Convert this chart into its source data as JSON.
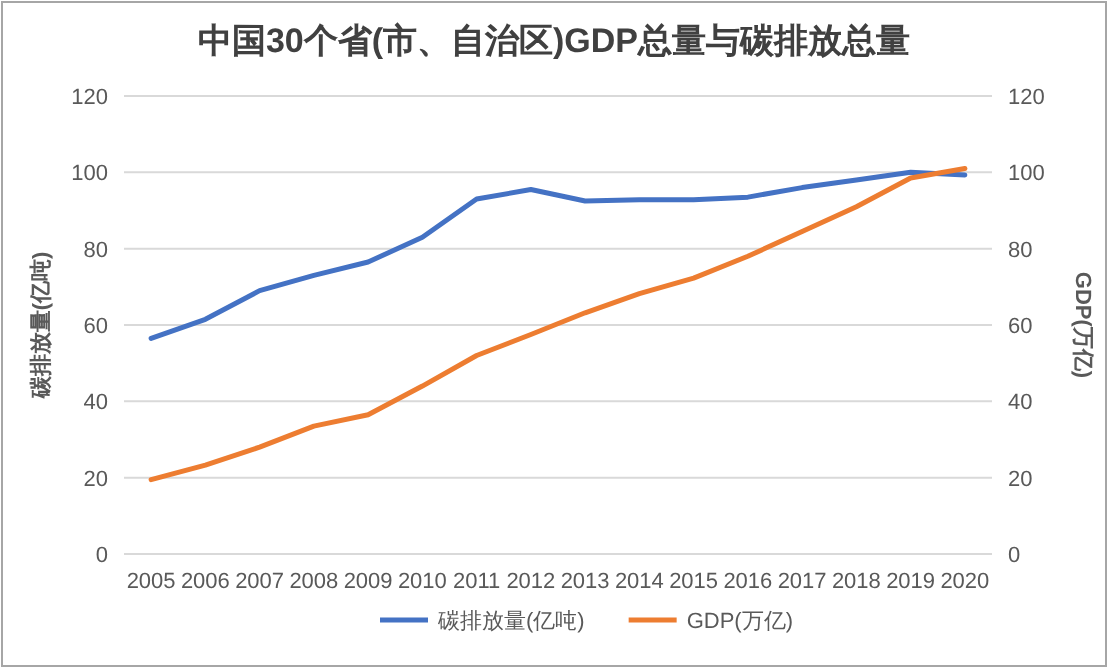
{
  "chart_data": {
    "type": "line",
    "title": "中国30个省(市、自治区)GDP总量与碳排放总量",
    "ylabel": "碳排放量(亿吨)",
    "y2label": "GDP(万亿)",
    "categories": [
      "2005",
      "2006",
      "2007",
      "2008",
      "2009",
      "2010",
      "2011",
      "2012",
      "2013",
      "2014",
      "2015",
      "2016",
      "2017",
      "2018",
      "2019",
      "2020"
    ],
    "series": [
      {
        "name": "碳排放量(亿吨)",
        "color": "#4472c4",
        "values": [
          56.5,
          61.5,
          69,
          73,
          76.5,
          83,
          93,
          95.5,
          92.5,
          92.8,
          92.8,
          93.5,
          96,
          98,
          100,
          99.3
        ]
      },
      {
        "name": "GDP(万亿)",
        "color": "#ed7d31",
        "axis": "y2",
        "values": [
          19.5,
          23.3,
          28,
          33.5,
          36.5,
          44,
          52,
          57.5,
          63.2,
          68.2,
          72.3,
          78,
          84.5,
          91,
          98.5,
          101
        ]
      }
    ],
    "ylim": [
      0,
      120
    ],
    "yticks": [
      0,
      20,
      40,
      60,
      80,
      100,
      120
    ],
    "y2lim": [
      0,
      120
    ],
    "y2ticks": [
      0,
      20,
      40,
      60,
      80,
      100,
      120
    ],
    "grid": "y",
    "legend": "bottom",
    "marker": "none",
    "line_style": "solid"
  }
}
